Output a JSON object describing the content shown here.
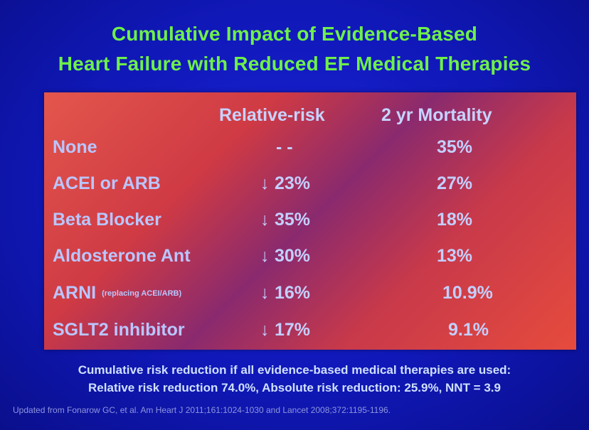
{
  "title": {
    "line1": "Cumulative Impact of Evidence-Based",
    "line2": "Heart Failure with Reduced EF Medical Therapies"
  },
  "table": {
    "headers": {
      "relative_risk": "Relative-risk",
      "mortality": "2 yr Mortality"
    },
    "rows": [
      {
        "therapy": "None",
        "note": "",
        "arrow": "",
        "relative_risk": "- -",
        "mortality": "35%"
      },
      {
        "therapy": "ACEI or ARB",
        "note": "",
        "arrow": "↓",
        "relative_risk": "23%",
        "mortality": "27%"
      },
      {
        "therapy": "Beta Blocker",
        "note": "",
        "arrow": "↓",
        "relative_risk": "35%",
        "mortality": "18%"
      },
      {
        "therapy": "Aldosterone Ant",
        "note": "",
        "arrow": "↓",
        "relative_risk": "30%",
        "mortality": "13%"
      },
      {
        "therapy": "ARNI",
        "note": "(replacing ACEI/ARB)",
        "arrow": "↓",
        "relative_risk": "16%",
        "mortality": "10.9%"
      },
      {
        "therapy": "SGLT2 inhibitor",
        "note": "",
        "arrow": "↓",
        "relative_risk": "17%",
        "mortality": "9.1%"
      }
    ]
  },
  "footer": {
    "line1": "Cumulative risk reduction if all evidence-based medical therapies are used:",
    "line2": "Relative risk reduction 74.0%, Absolute risk reduction: 25.9%,  NNT = 3.9"
  },
  "citation": "Updated from Fonarow GC, et al. Am Heart J 2011;161:1024-1030 and Lancet 2008;372:1195-1196."
}
